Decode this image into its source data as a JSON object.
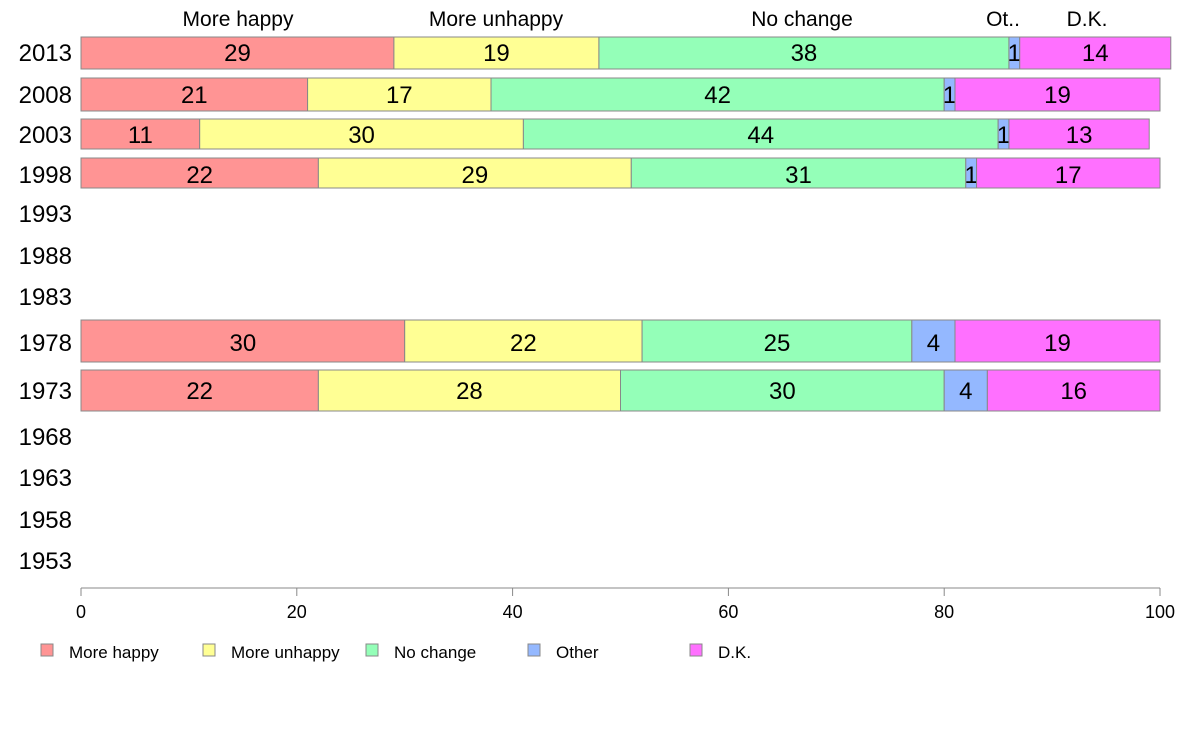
{
  "chart_data": {
    "type": "bar",
    "orientation": "horizontal",
    "stacked": true,
    "categories": [
      "2013",
      "2008",
      "2003",
      "1998",
      "1993",
      "1988",
      "1983",
      "1978",
      "1973",
      "1968",
      "1963",
      "1958",
      "1953"
    ],
    "series": [
      {
        "name": "More happy",
        "color": "#ff9494",
        "values": [
          29,
          21,
          11,
          22,
          null,
          null,
          null,
          30,
          22,
          null,
          null,
          null,
          null
        ]
      },
      {
        "name": "More unhappy",
        "color": "#ffff94",
        "values": [
          19,
          17,
          30,
          29,
          null,
          null,
          null,
          22,
          28,
          null,
          null,
          null,
          null
        ]
      },
      {
        "name": "No change",
        "color": "#94ffb8",
        "values": [
          38,
          42,
          44,
          31,
          null,
          null,
          null,
          25,
          30,
          null,
          null,
          null,
          null
        ]
      },
      {
        "name": "Other",
        "color": "#94b8ff",
        "values": [
          1,
          1,
          1,
          1,
          null,
          null,
          null,
          4,
          4,
          null,
          null,
          null,
          null
        ]
      },
      {
        "name": "D.K.",
        "color": "#ff70ff",
        "values": [
          14,
          19,
          13,
          17,
          null,
          null,
          null,
          19,
          16,
          null,
          null,
          null,
          null
        ]
      }
    ],
    "header_labels": [
      "More happy",
      "More unhappy",
      "No change",
      "Ot..",
      "D.K."
    ],
    "xlim": [
      0,
      100
    ],
    "xticks": [
      0,
      20,
      40,
      60,
      80,
      100
    ],
    "grid": false,
    "legend_position": "bottom-left"
  }
}
